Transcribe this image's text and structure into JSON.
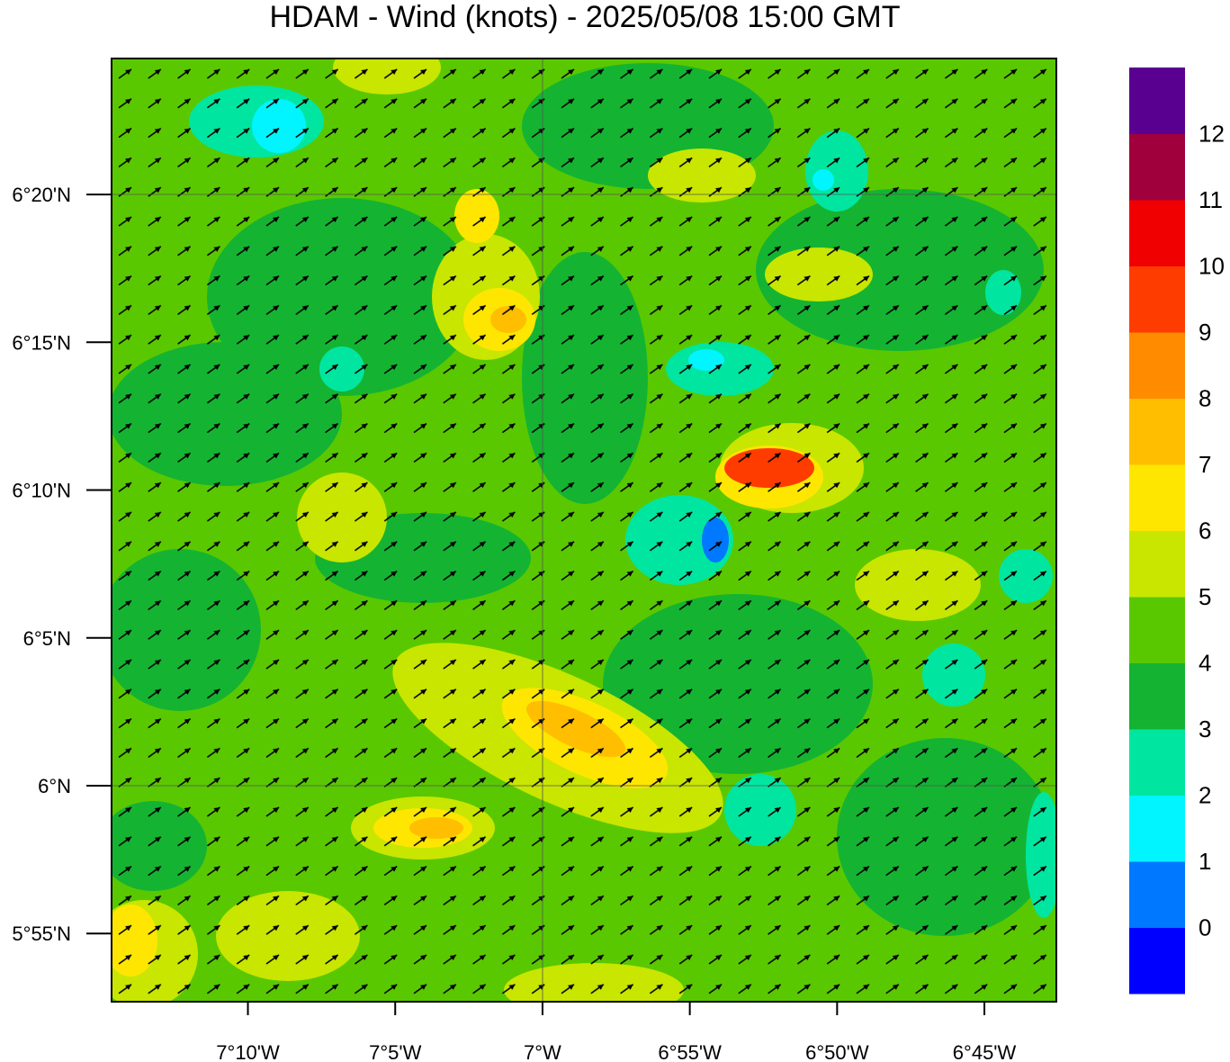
{
  "title": "HDAM - Wind (knots)  -  2025/05/08  15:00 GMT",
  "map": {
    "xlim": [
      -7.2438,
      -6.7093
    ],
    "ylim": [
      5.8782,
      6.41
    ],
    "xticks": [
      {
        "value": -7.16667,
        "label": "7°10'W"
      },
      {
        "value": -7.08333,
        "label": "7°5'W"
      },
      {
        "value": -7.0,
        "label": "7°W"
      },
      {
        "value": -6.91667,
        "label": "6°55'W"
      },
      {
        "value": -6.83333,
        "label": "6°50'W"
      },
      {
        "value": -6.75,
        "label": "6°45'W"
      }
    ],
    "yticks": [
      {
        "value": 5.91667,
        "label": "5°55'N"
      },
      {
        "value": 6.0,
        "label": "6°N"
      },
      {
        "value": 6.08333,
        "label": "6°5'N"
      },
      {
        "value": 6.16667,
        "label": "6°10'N"
      },
      {
        "value": 6.25,
        "label": "6°15'N"
      },
      {
        "value": 6.33333,
        "label": "6°20'N"
      }
    ]
  },
  "colorbar": {
    "levels": [
      0,
      1,
      2,
      3,
      4,
      5,
      6,
      7,
      8,
      9,
      10,
      11,
      12
    ],
    "colors": [
      "#0000ff",
      "#0078ff",
      "#00f5ff",
      "#00e6a0",
      "#14b432",
      "#5ac800",
      "#c8e600",
      "#ffe600",
      "#ffbe00",
      "#ff8c00",
      "#ff3c00",
      "#f00000",
      "#a0003c",
      "#5a0090"
    ]
  }
}
